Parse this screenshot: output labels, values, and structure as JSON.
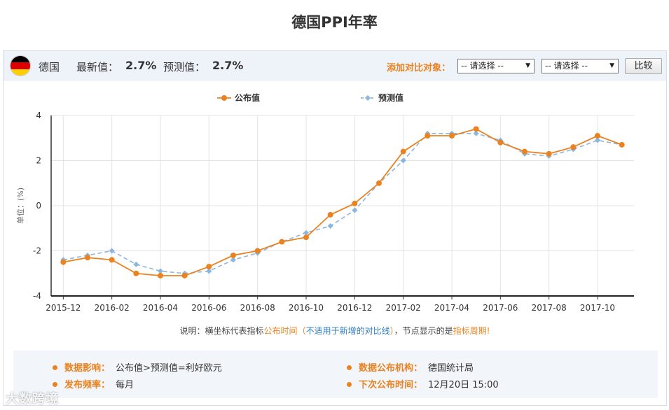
{
  "header": {
    "title": "德国PPI年率"
  },
  "toolbar": {
    "country": "德国",
    "latest_label": "最新值：",
    "latest_value": "2.7%",
    "forecast_label": "预测值：",
    "forecast_value": "2.7%",
    "compare_label": "添加对比对象：",
    "select_1": "-- 请选择 --",
    "select_2": "-- 请选择 --",
    "compare_button": "比较",
    "flag_colors": [
      "#000000",
      "#dd0000",
      "#ffce00"
    ]
  },
  "note": {
    "prefix": "说明：横坐标代表指标",
    "highlight_1": "公布时间",
    "paren_open": "（",
    "middle": "不适用于新增的对比线",
    "paren_close": "）",
    "suffix": "，节点显示的是",
    "highlight_2": "指标周期",
    "end": "!"
  },
  "info": {
    "impact_label": "数据影响：",
    "impact_value": "公布值>预测值=利好欧元",
    "agency_label": "数据公布机构：",
    "agency_value": "德国统计局",
    "frequency_label": "发布频率：",
    "frequency_value": "每月",
    "next_label": "下次公布时间：",
    "next_value": "12月20日 15:00"
  },
  "watermark": "大数跨境",
  "chart_data": {
    "type": "line",
    "ylabel": "单位：(%)",
    "ylim": [
      -4,
      4
    ],
    "yticks": [
      4,
      2,
      0,
      -2,
      -4
    ],
    "x": [
      "2015-12",
      "2016-01",
      "2016-02",
      "2016-03",
      "2016-04",
      "2016-05",
      "2016-06",
      "2016-07",
      "2016-08",
      "2016-09",
      "2016-10",
      "2016-11",
      "2016-12",
      "2017-01",
      "2017-02",
      "2017-03",
      "2017-04",
      "2017-05",
      "2017-06",
      "2017-07",
      "2017-08",
      "2017-09",
      "2017-10",
      "2017-11"
    ],
    "xtick_labels": [
      "2015-12",
      "2016-02",
      "2016-04",
      "2016-06",
      "2016-08",
      "2016-10",
      "2016-12",
      "2017-02",
      "2017-04",
      "2017-06",
      "2017-08",
      "2017-10"
    ],
    "legend_position": "top-center",
    "grid": true,
    "series": [
      {
        "name": "公布值",
        "color": "#e9821f",
        "style": "solid",
        "values": [
          -2.5,
          -2.3,
          -2.4,
          -3.0,
          -3.1,
          -3.1,
          -2.7,
          -2.2,
          -2.0,
          -1.6,
          -1.4,
          -0.4,
          0.1,
          1.0,
          2.4,
          3.1,
          3.1,
          3.4,
          2.8,
          2.4,
          2.3,
          2.6,
          3.1,
          2.7
        ]
      },
      {
        "name": "预测值",
        "color": "#8db6df",
        "style": "dashed",
        "values": [
          -2.4,
          -2.2,
          -2.0,
          -2.6,
          -2.9,
          -3.0,
          -2.9,
          -2.4,
          -2.1,
          -1.6,
          -1.2,
          -0.9,
          -0.2,
          1.0,
          2.0,
          3.2,
          3.2,
          3.2,
          2.9,
          2.3,
          2.2,
          2.5,
          2.9,
          2.7
        ]
      }
    ]
  }
}
